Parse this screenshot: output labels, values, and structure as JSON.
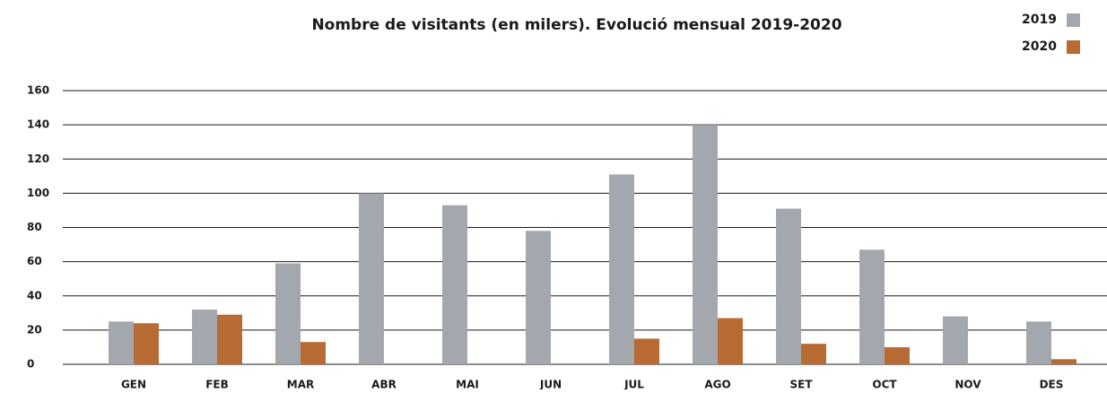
{
  "chart_data": {
    "type": "bar",
    "title": "Nombre de visitants (en milers). Evolució mensual 2019-2020",
    "categories": [
      "GEN",
      "FEB",
      "MAR",
      "ABR",
      "MAI",
      "JUN",
      "JUL",
      "AGO",
      "SET",
      "OCT",
      "NOV",
      "DES"
    ],
    "series": [
      {
        "name": "2019",
        "color": "#a3a8ae",
        "values": [
          25,
          32,
          59,
          100,
          93,
          78,
          111,
          140,
          91,
          67,
          28,
          25
        ]
      },
      {
        "name": "2020",
        "color": "#b86b32",
        "values": [
          24,
          29,
          13,
          0,
          0,
          0,
          15,
          27,
          12,
          10,
          0,
          3
        ]
      }
    ],
    "ylim": [
      0,
      160
    ],
    "yticks": [
      0,
      20,
      40,
      60,
      80,
      100,
      120,
      140,
      160
    ],
    "grid": true,
    "legend": "top-right"
  }
}
